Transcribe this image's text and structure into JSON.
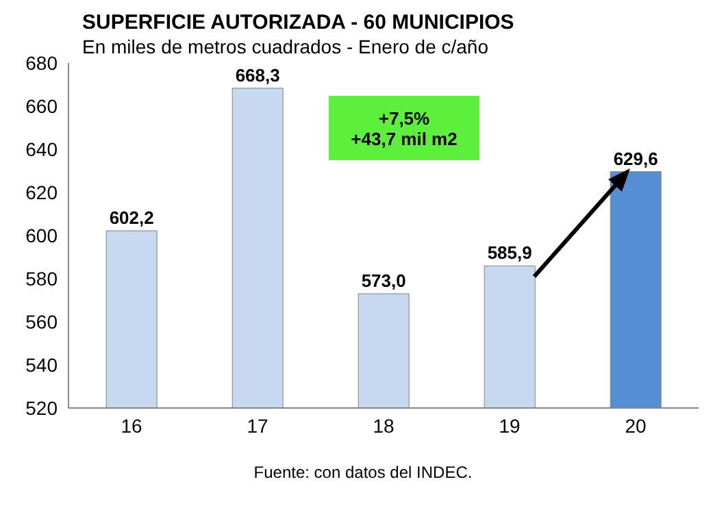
{
  "chart_data": {
    "type": "bar",
    "title": "SUPERFICIE AUTORIZADA  - 60 MUNICIPIOS",
    "subtitle": "En miles de metros cuadrados - Enero de c/año",
    "categories": [
      "16",
      "17",
      "18",
      "19",
      "20"
    ],
    "values": [
      602.2,
      668.3,
      573.0,
      585.9,
      629.6
    ],
    "value_labels": [
      "602,2",
      "668,3",
      "573,0",
      "585,9",
      "629,6"
    ],
    "colors": [
      "#c6d9f1",
      "#c6d9f1",
      "#c6d9f1",
      "#c6d9f1",
      "#558ed5"
    ],
    "ylim": [
      520,
      680
    ],
    "yticks": [
      520,
      540,
      560,
      580,
      600,
      620,
      640,
      660,
      680
    ],
    "annotations": [
      "+7,5%",
      "+43,7 mil m2",
      "Fuente: con datos del INDEC."
    ]
  }
}
